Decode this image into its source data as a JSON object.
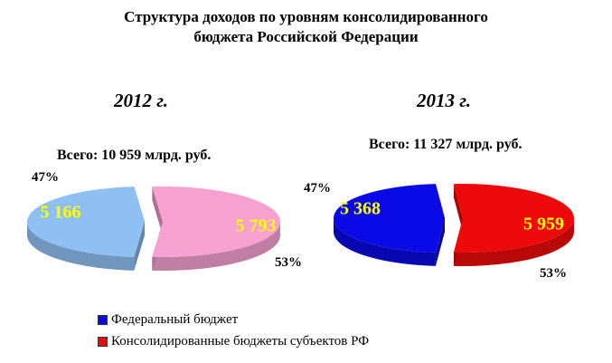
{
  "title_line1": "Структура  доходов по уровням консолидированного",
  "title_line2": "бюджета Российской Федерации",
  "chart_data": [
    {
      "type": "pie",
      "year": "2012 г.",
      "total": "Всего: 10 959 млрд. руб.",
      "slices": [
        {
          "series": "Федеральный бюджет",
          "value": 5166,
          "label": "5 166",
          "pct": "47%",
          "color": "#8fc0f3"
        },
        {
          "series": "Консолидированные бюджеты субъектов РФ",
          "value": 5793,
          "label": "5 793",
          "pct": "53%",
          "color": "#f7a1d2"
        }
      ]
    },
    {
      "type": "pie",
      "year": "2013 г.",
      "total": "Всего: 11 327 млрд. руб.",
      "slices": [
        {
          "series": "Федеральный бюджет",
          "value": 5368,
          "label": "5 368",
          "pct": "47%",
          "color": "#0a0ae6"
        },
        {
          "series": "Консолидированные бюджеты субъектов РФ",
          "value": 5959,
          "label": "5 959",
          "pct": "53%",
          "color": "#ee0a0a"
        }
      ]
    }
  ],
  "legend": [
    {
      "label": "Федеральный бюджет",
      "color": "#0a0ae6"
    },
    {
      "label": "Консолидированные бюджеты субъектов РФ",
      "color": "#ee0a0a"
    }
  ],
  "value_label_color": "#ffff00"
}
